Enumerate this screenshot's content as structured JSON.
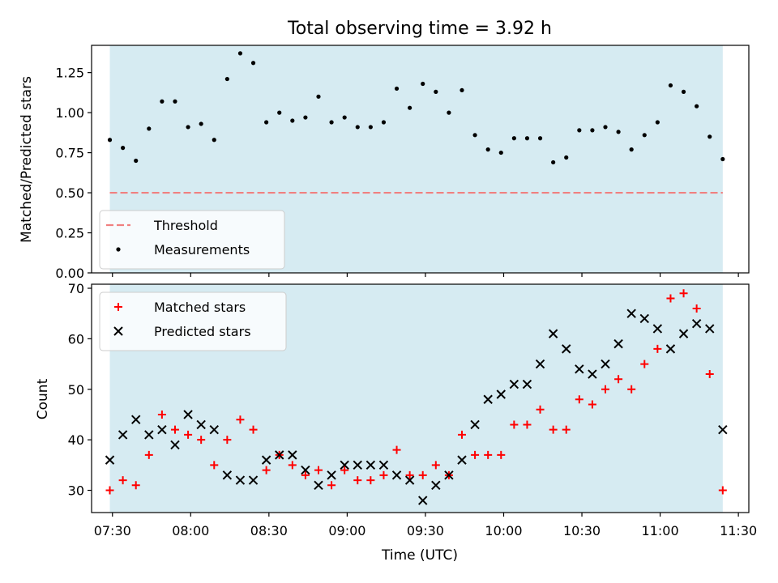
{
  "chart_data": [
    {
      "type": "scatter",
      "title": "Total observing time = 3.92 h",
      "xlabel": "",
      "ylabel": "Matched/Predicted stars",
      "ylim": [
        0,
        1.42
      ],
      "xlim": [
        "07:22",
        "11:34"
      ],
      "yticks": [
        0,
        0.25,
        0.5,
        0.75,
        1.0,
        1.25
      ],
      "ytick_labels": [
        "0.00",
        "0.25",
        "0.50",
        "0.75",
        "1.00",
        "1.25"
      ],
      "shaded_span": {
        "from": "07:29",
        "to": "11:24",
        "color": "#add8e6"
      },
      "threshold": {
        "name": "Threshold",
        "value": 0.5,
        "color": "#f08080",
        "style": "dashed"
      },
      "legend": {
        "position": "lower-left",
        "entries": [
          "Threshold",
          "Measurements"
        ]
      },
      "series": [
        {
          "name": "Measurements",
          "marker": "dot",
          "color": "#000000",
          "points": [
            [
              "07:29",
              0.83
            ],
            [
              "07:34",
              0.78
            ],
            [
              "07:39",
              0.7
            ],
            [
              "07:44",
              0.9
            ],
            [
              "07:49",
              1.07
            ],
            [
              "07:54",
              1.07
            ],
            [
              "07:59",
              0.91
            ],
            [
              "08:04",
              0.93
            ],
            [
              "08:09",
              0.83
            ],
            [
              "08:14",
              1.21
            ],
            [
              "08:19",
              1.37
            ],
            [
              "08:24",
              1.31
            ],
            [
              "08:29",
              0.94
            ],
            [
              "08:34",
              1.0
            ],
            [
              "08:39",
              0.95
            ],
            [
              "08:44",
              0.97
            ],
            [
              "08:49",
              1.1
            ],
            [
              "08:54",
              0.94
            ],
            [
              "08:59",
              0.97
            ],
            [
              "09:04",
              0.91
            ],
            [
              "09:09",
              0.91
            ],
            [
              "09:14",
              0.94
            ],
            [
              "09:19",
              1.15
            ],
            [
              "09:24",
              1.03
            ],
            [
              "09:29",
              1.18
            ],
            [
              "09:34",
              1.13
            ],
            [
              "09:39",
              1.0
            ],
            [
              "09:44",
              1.14
            ],
            [
              "09:49",
              0.86
            ],
            [
              "09:54",
              0.77
            ],
            [
              "09:59",
              0.75
            ],
            [
              "10:04",
              0.84
            ],
            [
              "10:09",
              0.84
            ],
            [
              "10:14",
              0.84
            ],
            [
              "10:19",
              0.69
            ],
            [
              "10:24",
              0.72
            ],
            [
              "10:29",
              0.89
            ],
            [
              "10:34",
              0.89
            ],
            [
              "10:39",
              0.91
            ],
            [
              "10:44",
              0.88
            ],
            [
              "10:49",
              0.77
            ],
            [
              "10:54",
              0.86
            ],
            [
              "10:59",
              0.94
            ],
            [
              "11:04",
              1.17
            ],
            [
              "11:09",
              1.13
            ],
            [
              "11:14",
              1.04
            ],
            [
              "11:19",
              0.85
            ],
            [
              "11:24",
              0.71
            ]
          ]
        }
      ]
    },
    {
      "type": "scatter",
      "xlabel": "Time (UTC)",
      "ylabel": "Count",
      "ylim": [
        25.6,
        70.8
      ],
      "xlim": [
        "07:22",
        "11:34"
      ],
      "yticks": [
        30,
        40,
        50,
        60,
        70
      ],
      "xticks": [
        "07:30",
        "08:00",
        "08:30",
        "09:00",
        "09:30",
        "10:00",
        "10:30",
        "11:00",
        "11:30"
      ],
      "shaded_span": {
        "from": "07:29",
        "to": "11:24",
        "color": "#add8e6"
      },
      "legend": {
        "position": "upper-left",
        "entries": [
          "Matched stars",
          "Predicted stars"
        ]
      },
      "series": [
        {
          "name": "Matched stars",
          "marker": "plus",
          "color": "#ff0000",
          "points": [
            [
              "07:29",
              30
            ],
            [
              "07:34",
              32
            ],
            [
              "07:39",
              31
            ],
            [
              "07:44",
              37
            ],
            [
              "07:49",
              45
            ],
            [
              "07:54",
              42
            ],
            [
              "07:59",
              41
            ],
            [
              "08:04",
              40
            ],
            [
              "08:09",
              35
            ],
            [
              "08:14",
              40
            ],
            [
              "08:19",
              44
            ],
            [
              "08:24",
              42
            ],
            [
              "08:29",
              34
            ],
            [
              "08:34",
              37
            ],
            [
              "08:39",
              35
            ],
            [
              "08:44",
              33
            ],
            [
              "08:49",
              34
            ],
            [
              "08:54",
              31
            ],
            [
              "08:59",
              34
            ],
            [
              "09:04",
              32
            ],
            [
              "09:09",
              32
            ],
            [
              "09:14",
              33
            ],
            [
              "09:19",
              38
            ],
            [
              "09:24",
              33
            ],
            [
              "09:29",
              33
            ],
            [
              "09:34",
              35
            ],
            [
              "09:39",
              33
            ],
            [
              "09:44",
              41
            ],
            [
              "09:49",
              37
            ],
            [
              "09:54",
              37
            ],
            [
              "09:59",
              37
            ],
            [
              "10:04",
              43
            ],
            [
              "10:09",
              43
            ],
            [
              "10:14",
              46
            ],
            [
              "10:19",
              42
            ],
            [
              "10:24",
              42
            ],
            [
              "10:29",
              48
            ],
            [
              "10:34",
              47
            ],
            [
              "10:39",
              50
            ],
            [
              "10:44",
              52
            ],
            [
              "10:49",
              50
            ],
            [
              "10:54",
              55
            ],
            [
              "10:59",
              58
            ],
            [
              "11:04",
              68
            ],
            [
              "11:09",
              69
            ],
            [
              "11:14",
              66
            ],
            [
              "11:19",
              53
            ],
            [
              "11:24",
              30
            ]
          ]
        },
        {
          "name": "Predicted stars",
          "marker": "x",
          "color": "#000000",
          "points": [
            [
              "07:29",
              36
            ],
            [
              "07:34",
              41
            ],
            [
              "07:39",
              44
            ],
            [
              "07:44",
              41
            ],
            [
              "07:49",
              42
            ],
            [
              "07:54",
              39
            ],
            [
              "07:59",
              45
            ],
            [
              "08:04",
              43
            ],
            [
              "08:09",
              42
            ],
            [
              "08:14",
              33
            ],
            [
              "08:19",
              32
            ],
            [
              "08:24",
              32
            ],
            [
              "08:29",
              36
            ],
            [
              "08:34",
              37
            ],
            [
              "08:39",
              37
            ],
            [
              "08:44",
              34
            ],
            [
              "08:49",
              31
            ],
            [
              "08:54",
              33
            ],
            [
              "08:59",
              35
            ],
            [
              "09:04",
              35
            ],
            [
              "09:09",
              35
            ],
            [
              "09:14",
              35
            ],
            [
              "09:19",
              33
            ],
            [
              "09:24",
              32
            ],
            [
              "09:29",
              28
            ],
            [
              "09:34",
              31
            ],
            [
              "09:39",
              33
            ],
            [
              "09:44",
              36
            ],
            [
              "09:49",
              43
            ],
            [
              "09:54",
              48
            ],
            [
              "09:59",
              49
            ],
            [
              "10:04",
              51
            ],
            [
              "10:09",
              51
            ],
            [
              "10:14",
              55
            ],
            [
              "10:19",
              61
            ],
            [
              "10:24",
              58
            ],
            [
              "10:29",
              54
            ],
            [
              "10:34",
              53
            ],
            [
              "10:39",
              55
            ],
            [
              "10:44",
              59
            ],
            [
              "10:49",
              65
            ],
            [
              "10:54",
              64
            ],
            [
              "10:59",
              62
            ],
            [
              "11:04",
              58
            ],
            [
              "11:09",
              61
            ],
            [
              "11:14",
              63
            ],
            [
              "11:19",
              62
            ],
            [
              "11:24",
              42
            ]
          ]
        }
      ]
    }
  ]
}
